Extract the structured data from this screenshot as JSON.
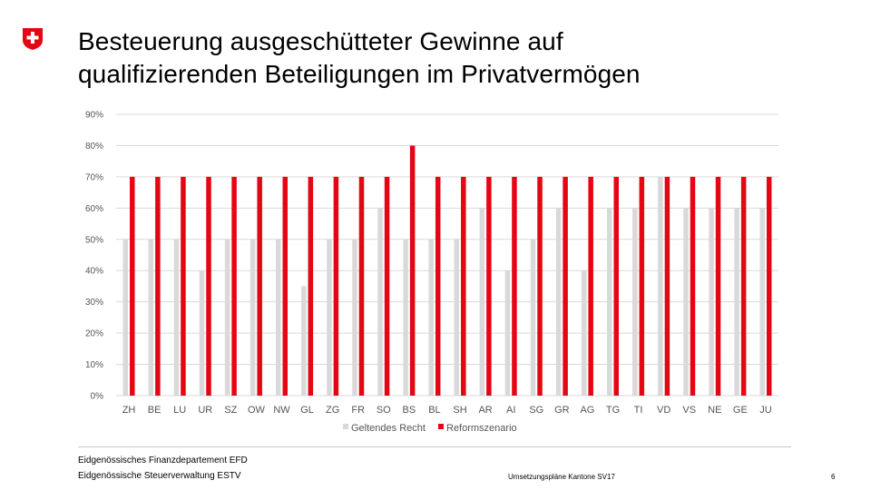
{
  "colors": {
    "accent_red": "#e30613",
    "series_current": "#d9d9d9",
    "series_reform": "#e30613",
    "grid": "#d9d9d9"
  },
  "header": {
    "logo_icon": "swiss-cross-icon",
    "title_line1": "Besteuerung ausgeschütteter Gewinne auf",
    "title_line2": "qualifizierenden Beteiligungen im Privatvermögen"
  },
  "chart_data": {
    "type": "bar",
    "title": "Besteuerung ausgeschütteter Gewinne auf qualifizierenden Beteiligungen im Privatvermögen",
    "xlabel": "",
    "ylabel": "",
    "ylim": [
      0,
      90
    ],
    "yticks": [
      0,
      10,
      20,
      30,
      40,
      50,
      60,
      70,
      80,
      90
    ],
    "ytick_labels": [
      "0%",
      "10%",
      "20%",
      "30%",
      "40%",
      "50%",
      "60%",
      "70%",
      "80%",
      "90%"
    ],
    "grid": true,
    "legend_position": "bottom",
    "categories": [
      "ZH",
      "BE",
      "LU",
      "UR",
      "SZ",
      "OW",
      "NW",
      "GL",
      "ZG",
      "FR",
      "SO",
      "BS",
      "BL",
      "SH",
      "AR",
      "AI",
      "SG",
      "GR",
      "AG",
      "TG",
      "TI",
      "VD",
      "VS",
      "NE",
      "GE",
      "JU"
    ],
    "series": [
      {
        "name": "Geltendes Recht",
        "color": "#d9d9d9",
        "values": [
          50,
          50,
          50,
          40,
          50,
          50,
          50,
          35,
          50,
          50,
          60,
          50,
          50,
          50,
          60,
          40,
          50,
          60,
          40,
          60,
          60,
          70,
          60,
          60,
          60,
          60
        ]
      },
      {
        "name": "Reformszenario",
        "color": "#e30613",
        "values": [
          70,
          70,
          70,
          70,
          70,
          70,
          70,
          70,
          70,
          70,
          70,
          80,
          70,
          70,
          70,
          70,
          70,
          70,
          70,
          70,
          70,
          70,
          70,
          70,
          70,
          70
        ]
      }
    ]
  },
  "footer": {
    "department": "Eidgenössisches Finanzdepartement EFD",
    "administration": "Eidgenössische Steuerverwaltung ESTV",
    "topic": "Umsetzungspläne Kantone SV17",
    "page_number": "6"
  }
}
